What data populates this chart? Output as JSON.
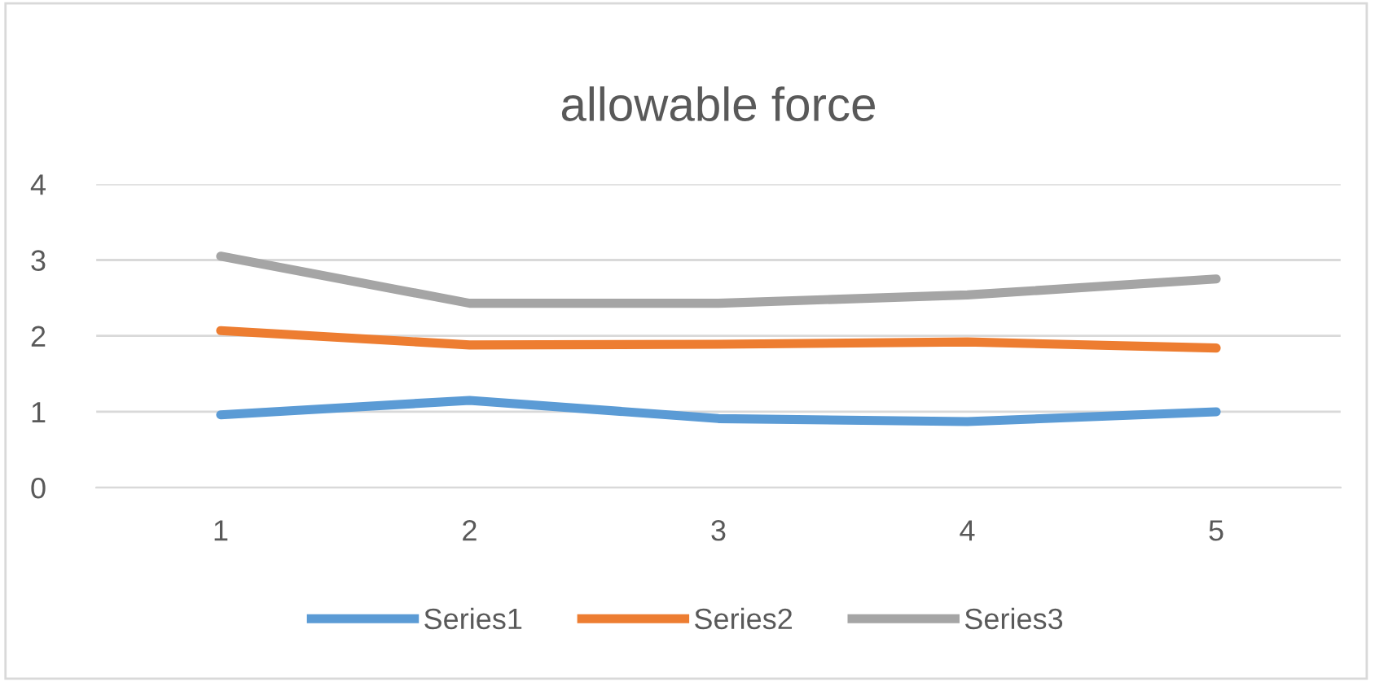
{
  "chart_data": {
    "type": "line",
    "title": "allowable force",
    "categories": [
      "1",
      "2",
      "3",
      "4",
      "5"
    ],
    "series": [
      {
        "name": "Series1",
        "color": "#5b9bd5",
        "values": [
          0.96,
          1.15,
          0.91,
          0.87,
          1.0
        ]
      },
      {
        "name": "Series2",
        "color": "#ed7d31",
        "values": [
          2.07,
          1.88,
          1.89,
          1.92,
          1.84
        ]
      },
      {
        "name": "Series3",
        "color": "#a5a5a5",
        "values": [
          3.05,
          2.43,
          2.43,
          2.54,
          2.75
        ]
      }
    ],
    "ylim": [
      0,
      4
    ],
    "yticks": [
      0,
      1,
      2,
      3,
      4
    ],
    "grid": "y",
    "legend": "bottom",
    "marker": "none",
    "line_style": "solid"
  }
}
